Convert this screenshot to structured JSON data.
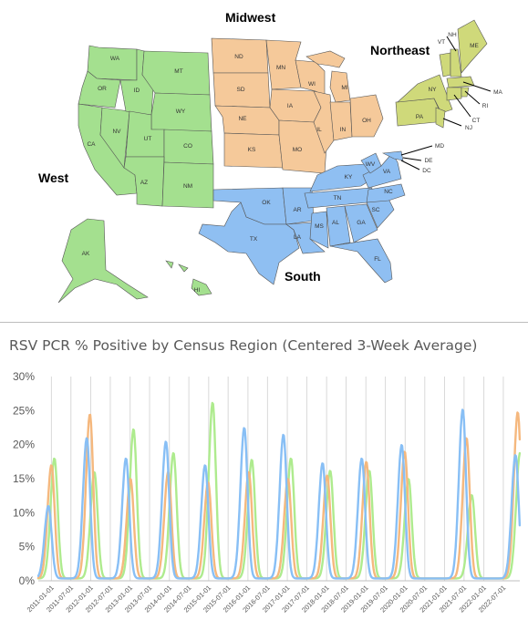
{
  "map": {
    "regions": {
      "west": {
        "label": "West",
        "color": "#a4e08f"
      },
      "midwest": {
        "label": "Midwest",
        "color": "#f5c99a"
      },
      "northeast": {
        "label": "Northeast",
        "color": "#cfd97a"
      },
      "south": {
        "label": "South",
        "color": "#8fbff2"
      }
    },
    "states": {
      "WA": "WA",
      "OR": "OR",
      "ID": "ID",
      "MT": "MT",
      "WY": "WY",
      "CA": "CA",
      "NV": "NV",
      "UT": "UT",
      "CO": "CO",
      "AZ": "AZ",
      "NM": "NM",
      "AK": "AK",
      "HI": "HI",
      "ND": "ND",
      "SD": "SD",
      "NE": "NE",
      "KS": "KS",
      "MN": "MN",
      "IA": "IA",
      "MO": "MO",
      "WI": "WI",
      "IL": "IL",
      "MI": "MI",
      "IN": "IN",
      "OH": "OH",
      "OK": "OK",
      "TX": "TX",
      "AR": "AR",
      "LA": "LA",
      "MS": "MS",
      "AL": "AL",
      "TN": "TN",
      "KY": "KY",
      "GA": "GA",
      "FL": "FL",
      "SC": "SC",
      "NC": "NC",
      "VA": "VA",
      "WV": "WV",
      "MD": "MD",
      "DE": "DE",
      "DC": "DC",
      "PA": "PA",
      "NY": "NY",
      "VT": "VT",
      "NH": "NH",
      "ME": "ME",
      "MA": "MA",
      "RI": "RI",
      "CT": "CT",
      "NJ": "NJ"
    }
  },
  "chart_data": {
    "type": "line",
    "title": "RSV PCR % Positive by Census Region (Centered 3-Week Average)",
    "y_ticks": [
      "0%",
      "5%",
      "10%",
      "15%",
      "20%",
      "25%",
      "30%"
    ],
    "ylim": [
      0,
      30
    ],
    "x_range": [
      "2010-09-01",
      "2022-12-01"
    ],
    "x_ticks": [
      "2011-01-01",
      "2011-07-01",
      "2012-01-01",
      "2012-07-01",
      "2013-01-01",
      "2013-07-01",
      "2014-01-01",
      "2014-07-01",
      "2015-01-01",
      "2015-07-01",
      "2016-01-01",
      "2016-07-01",
      "2017-01-01",
      "2017-07-01",
      "2018-01-01",
      "2018-07-01",
      "2019-01-01",
      "2019-07-01",
      "2020-01-01",
      "2020-07-01",
      "2021-01-01",
      "2021-07-01",
      "2022-01-01",
      "2022-07-01"
    ],
    "grid": "vertical",
    "legend": "none",
    "series": [
      {
        "color": "#f5b87e",
        "peaks": [
          {
            "date": "2011-01-01",
            "value": 17
          },
          {
            "date": "2011-12-25",
            "value": 24.5
          },
          {
            "date": "2013-01-05",
            "value": 15
          },
          {
            "date": "2013-12-21",
            "value": 16
          },
          {
            "date": "2014-12-27",
            "value": 14.5
          },
          {
            "date": "2016-01-09",
            "value": 16
          },
          {
            "date": "2017-01-07",
            "value": 15
          },
          {
            "date": "2018-01-06",
            "value": 15.5
          },
          {
            "date": "2019-01-05",
            "value": 17.5
          },
          {
            "date": "2019-12-28",
            "value": 19
          },
          {
            "date": "2021-07-24",
            "value": 21
          },
          {
            "date": "2022-11-12",
            "value": 24.8
          }
        ]
      },
      {
        "color": "#88bff5",
        "peaks": [
          {
            "date": "2010-12-04",
            "value": 11
          },
          {
            "date": "2011-11-26",
            "value": 21
          },
          {
            "date": "2012-11-24",
            "value": 18
          },
          {
            "date": "2013-11-30",
            "value": 20.5
          },
          {
            "date": "2014-11-29",
            "value": 17
          },
          {
            "date": "2015-11-28",
            "value": 22.5
          },
          {
            "date": "2016-11-26",
            "value": 21.5
          },
          {
            "date": "2017-11-25",
            "value": 17.3
          },
          {
            "date": "2018-11-24",
            "value": 18
          },
          {
            "date": "2019-11-30",
            "value": 20
          },
          {
            "date": "2021-06-19",
            "value": 25.2
          },
          {
            "date": "2022-10-22",
            "value": 18.5
          }
        ]
      },
      {
        "color": "#aeeb8e",
        "peaks": [
          {
            "date": "2011-01-29",
            "value": 18
          },
          {
            "date": "2012-02-04",
            "value": 16
          },
          {
            "date": "2013-02-02",
            "value": 22.3
          },
          {
            "date": "2014-02-08",
            "value": 18.8
          },
          {
            "date": "2015-02-07",
            "value": 26.2
          },
          {
            "date": "2016-02-06",
            "value": 17.8
          },
          {
            "date": "2017-02-04",
            "value": 18
          },
          {
            "date": "2018-02-03",
            "value": 16.2
          },
          {
            "date": "2019-02-02",
            "value": 16.2
          },
          {
            "date": "2020-02-01",
            "value": 15
          },
          {
            "date": "2021-09-11",
            "value": 12.6
          },
          {
            "date": "2022-12-03",
            "value": 18.8
          }
        ]
      }
    ]
  }
}
